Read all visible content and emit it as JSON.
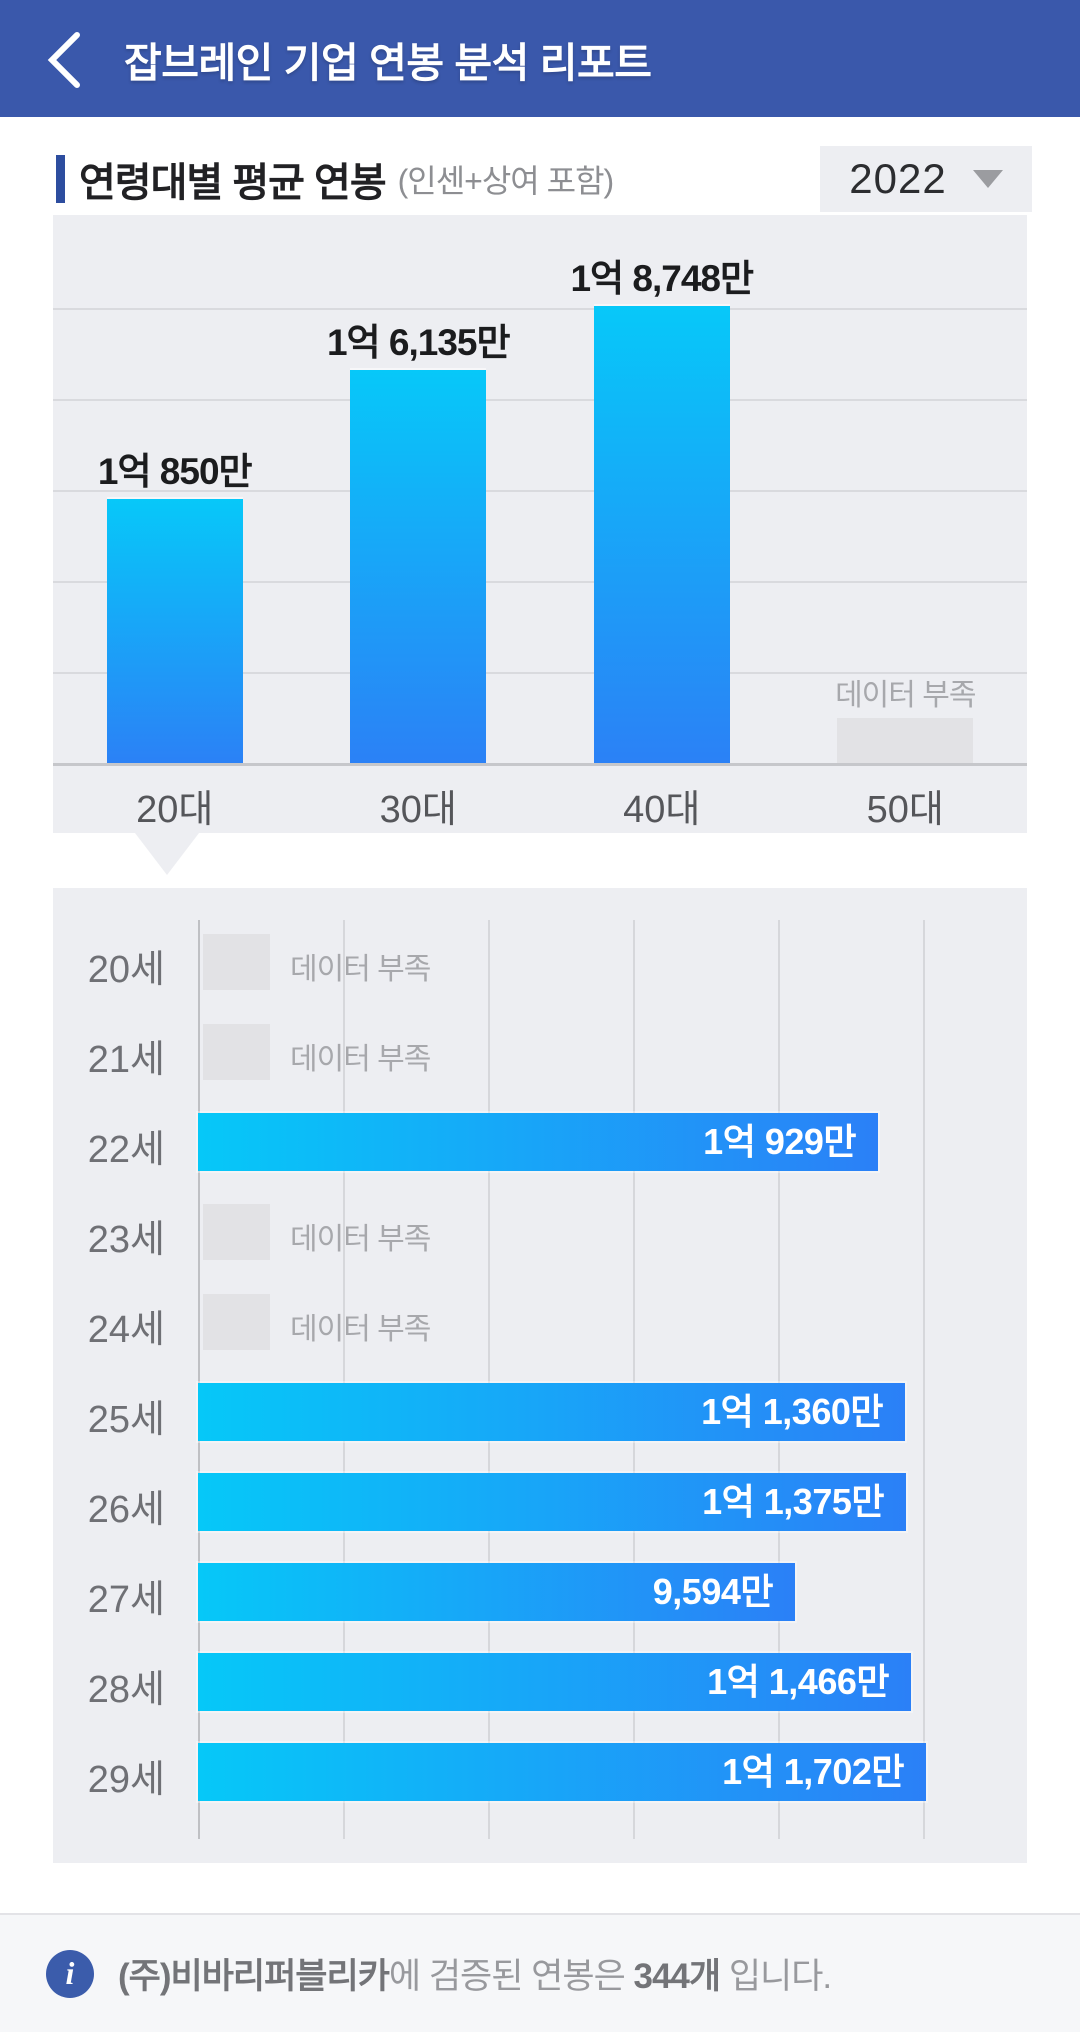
{
  "header": {
    "title": "잡브레인 기업 연봉 분석 리포트",
    "back_icon": "chevron-left"
  },
  "section": {
    "title": "연령대별 평균 연봉",
    "subtitle": "(인센+상여 포함)",
    "year_selector": {
      "value": "2022",
      "caret_icon": "caret-down"
    }
  },
  "chart_data": [
    {
      "type": "bar",
      "orientation": "vertical",
      "title": "연령대별 평균 연봉 (인센+상여 포함) 2022",
      "categories": [
        "20대",
        "30대",
        "40대",
        "50대"
      ],
      "values": [
        10850,
        16135,
        18748,
        null
      ],
      "value_labels": [
        "1억 850만",
        "1억 6,135만",
        "1억 8,748만",
        null
      ],
      "no_data_label": "데이터 부족",
      "unit": "만원",
      "grid": "horizontal gridlines, no y tick labels",
      "bar_colors": {
        "top": "#07c8f9",
        "bottom": "#2b81f6",
        "no_data": "#e2e2e5"
      }
    },
    {
      "type": "bar",
      "orientation": "horizontal",
      "title": "20대 연령별 평균 연봉 상세",
      "categories": [
        "20세",
        "21세",
        "22세",
        "23세",
        "24세",
        "25세",
        "26세",
        "27세",
        "28세",
        "29세"
      ],
      "values": [
        null,
        null,
        10929,
        null,
        null,
        11360,
        11375,
        9594,
        11466,
        11702
      ],
      "value_labels": [
        null,
        null,
        "1억 929만",
        null,
        null,
        "1억 1,360만",
        "1억 1,375만",
        "9,594만",
        "1억 1,466만",
        "1억 1,702만"
      ],
      "no_data_label": "데이터 부족",
      "unit": "만원",
      "grid": "vertical gridlines, no x tick labels",
      "bar_colors": {
        "left": "#06c8f8",
        "right": "#2b80f7",
        "no_data": "#e2e2e5"
      }
    }
  ],
  "footer": {
    "info_icon": "i",
    "company_bold": "(주)비바리퍼블리카",
    "middle_text": "에 검증된 연봉은 ",
    "count_bold": "344개",
    "suffix_text": " 입니다."
  },
  "colors": {
    "header_bg": "#3a58ab",
    "accent": "#2d4d9f",
    "panel_bg": "#edeef2",
    "bar_gradient_start": "#07c8f9",
    "bar_gradient_end": "#2b81f6",
    "no_data_gray": "#e2e2e5",
    "footer_bg": "#f6f7f9"
  }
}
